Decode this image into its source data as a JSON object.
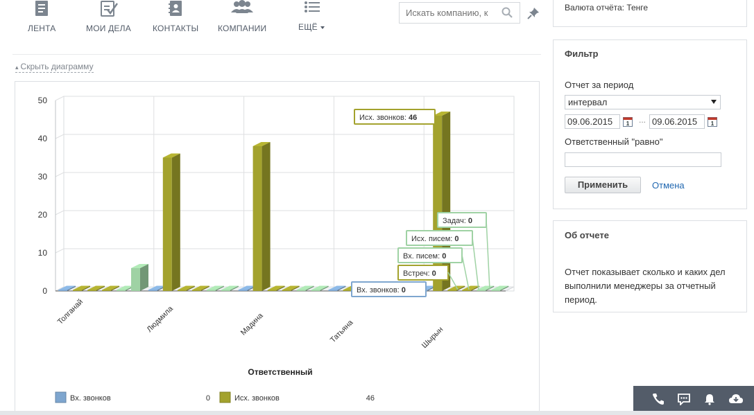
{
  "nav": {
    "items": [
      {
        "label": "Лента",
        "icon": "feed-icon"
      },
      {
        "label": "Мои дела",
        "icon": "tasks-checklist-icon"
      },
      {
        "label": "Контакты",
        "icon": "contacts-book-icon"
      },
      {
        "label": "Компании",
        "icon": "companies-group-icon"
      },
      {
        "label": "Ещё",
        "icon": "more-list-icon"
      }
    ]
  },
  "search": {
    "placeholder": "Искать компанию, к"
  },
  "hide_chart_label": "Скрыть диаграмму",
  "chart_data": {
    "type": "bar",
    "xlabel": "Ответственный",
    "ylabel": "",
    "ylim": [
      0,
      50
    ],
    "yticks": [
      0,
      10,
      20,
      30,
      40,
      50
    ],
    "categories": [
      "Толганай",
      "Людмила",
      "Мадина",
      "Татьяна",
      "Шырын"
    ],
    "series": [
      {
        "name": "Вх. звонков",
        "color": "#7ea6cf",
        "values": [
          0,
          0,
          0,
          0,
          0
        ]
      },
      {
        "name": "Исх. звонков",
        "color": "#a3a22d",
        "values": [
          0,
          35,
          38,
          0,
          46
        ]
      },
      {
        "name": "Встреч",
        "color": "#a3a22d",
        "values": [
          0,
          0,
          0,
          0,
          0
        ]
      },
      {
        "name": "Вх. писем",
        "color": "#a3a22d",
        "values": [
          0,
          0,
          0,
          0,
          0
        ]
      },
      {
        "name": "Исх. писем",
        "color": "#9fd2a4",
        "values": [
          0,
          0,
          0,
          0,
          0
        ]
      },
      {
        "name": "Задач",
        "color": "#9fd2a4",
        "values": [
          6,
          0,
          0,
          0,
          0
        ]
      }
    ],
    "tooltips": [
      {
        "label": "Исх. звонков",
        "value": "46"
      },
      {
        "label": "Задач",
        "value": "0"
      },
      {
        "label": "Исх. писем",
        "value": "0"
      },
      {
        "label": "Вх. писем",
        "value": "0"
      },
      {
        "label": "Встреч",
        "value": "0"
      },
      {
        "label": "Вх. звонков",
        "value": "0"
      }
    ],
    "legend": [
      {
        "name": "Вх. звонков",
        "color": "#7ea6cf",
        "value": "0"
      },
      {
        "name": "Исх. звонков",
        "color": "#a3a22d",
        "value": "46"
      }
    ]
  },
  "currency": {
    "text": "Валюта отчёта: Тенге"
  },
  "filter": {
    "title": "Фильтр",
    "period_label": "Отчет за период",
    "period_value": "интервал",
    "date_from": "09.06.2015",
    "date_to": "09.06.2015",
    "dots": "...",
    "responsible_label": "Ответственный \"равно\"",
    "responsible_value": "",
    "apply_label": "Применить",
    "cancel_label": "Отмена"
  },
  "about": {
    "title": "Об отчете",
    "text": "Отчет показывает сколько и каких дел выполнили менеджеры за отчетный период."
  },
  "toolbar": {
    "icons": [
      "phone-icon",
      "chat-icon",
      "bell-icon",
      "cloud-icon"
    ]
  }
}
